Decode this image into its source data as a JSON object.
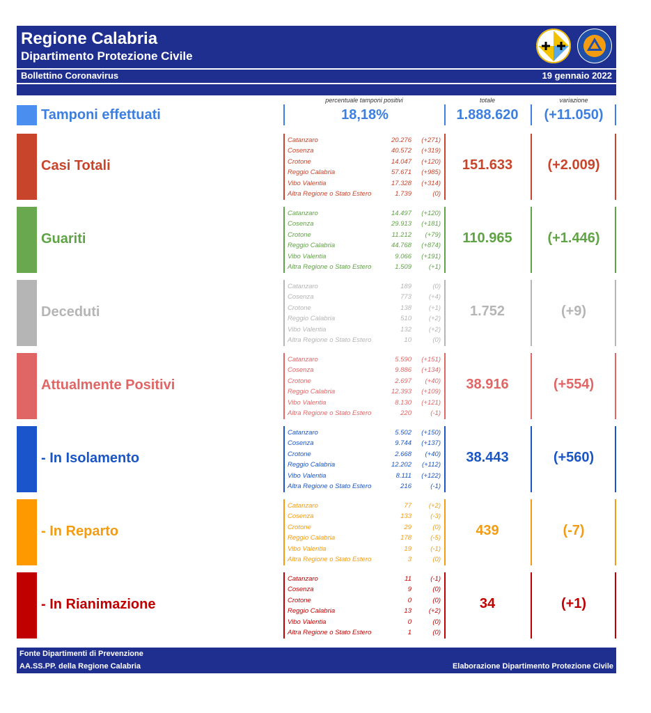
{
  "header": {
    "title": "Regione Calabria",
    "subtitle": "Dipartimento Protezione Civile",
    "bulletin": "Bollettino Coronavirus",
    "date": "19 gennaio 2022"
  },
  "columns": {
    "positivity": "percentuale tamponi positivi",
    "total": "totale",
    "change": "variazione"
  },
  "tamponi": {
    "label": "Tamponi effettuati",
    "positivity": "18,18%",
    "total": "1.888.620",
    "change": "(+11.050)",
    "color": "#3d7fe0"
  },
  "categories": [
    {
      "label": "Casi Totali",
      "color": "#c8442b",
      "bar_color": "#c8442b",
      "total": "151.633",
      "change": "(+2.009)",
      "rows": [
        {
          "prov": "Catanzaro",
          "num": "20.276",
          "delta": "(+271)"
        },
        {
          "prov": "Cosenza",
          "num": "40.572",
          "delta": "(+319)"
        },
        {
          "prov": "Crotone",
          "num": "14.047",
          "delta": "(+120)"
        },
        {
          "prov": "Reggio Calabria",
          "num": "57.671",
          "delta": "(+985)"
        },
        {
          "prov": "Vibo Valentia",
          "num": "17.328",
          "delta": "(+314)"
        },
        {
          "prov": "Altra Regione o Stato Estero",
          "num": "1.739",
          "delta": "(0)"
        }
      ]
    },
    {
      "label": "Guariti",
      "color": "#5fa344",
      "bar_color": "#6aa84f",
      "total": "110.965",
      "change": "(+1.446)",
      "rows": [
        {
          "prov": "Catanzaro",
          "num": "14.497",
          "delta": "(+120)"
        },
        {
          "prov": "Cosenza",
          "num": "29.913",
          "delta": "(+181)"
        },
        {
          "prov": "Crotone",
          "num": "11.212",
          "delta": "(+79)"
        },
        {
          "prov": "Reggio Calabria",
          "num": "44.768",
          "delta": "(+874)"
        },
        {
          "prov": "Vibo Valentia",
          "num": "9.066",
          "delta": "(+191)"
        },
        {
          "prov": "Altra Regione o Stato Estero",
          "num": "1.509",
          "delta": "(+1)"
        }
      ]
    },
    {
      "label": "Deceduti",
      "color": "#b5b5b5",
      "bar_color": "#b5b5b5",
      "total": "1.752",
      "change": "(+9)",
      "rows": [
        {
          "prov": "Catanzaro",
          "num": "189",
          "delta": "(0)"
        },
        {
          "prov": "Cosenza",
          "num": "773",
          "delta": "(+4)"
        },
        {
          "prov": "Crotone",
          "num": "138",
          "delta": "(+1)"
        },
        {
          "prov": "Reggio Calabria",
          "num": "510",
          "delta": "(+2)"
        },
        {
          "prov": "Vibo Valentia",
          "num": "132",
          "delta": "(+2)"
        },
        {
          "prov": "Altra Regione o Stato Estero",
          "num": "10",
          "delta": "(0)"
        }
      ]
    },
    {
      "label": "Attualmente Positivi",
      "color": "#e06666",
      "bar_color": "#e06666",
      "total": "38.916",
      "change": "(+554)",
      "rows": [
        {
          "prov": "Catanzaro",
          "num": "5.590",
          "delta": "(+151)"
        },
        {
          "prov": "Cosenza",
          "num": "9.886",
          "delta": "(+134)"
        },
        {
          "prov": "Crotone",
          "num": "2.697",
          "delta": "(+40)"
        },
        {
          "prov": "Reggio Calabria",
          "num": "12.393",
          "delta": "(+109)"
        },
        {
          "prov": "Vibo Valentia",
          "num": "8.130",
          "delta": "(+121)"
        },
        {
          "prov": "Altra Regione o Stato Estero",
          "num": "220",
          "delta": "(-1)"
        }
      ]
    },
    {
      "label": "- In Isolamento",
      "color": "#1a55c4",
      "bar_color": "#1a55cc",
      "total": "38.443",
      "change": "(+560)",
      "rows": [
        {
          "prov": "Catanzaro",
          "num": "5.502",
          "delta": "(+150)"
        },
        {
          "prov": "Cosenza",
          "num": "9.744",
          "delta": "(+137)"
        },
        {
          "prov": "Crotone",
          "num": "2.668",
          "delta": "(+40)"
        },
        {
          "prov": "Reggio Calabria",
          "num": "12.202",
          "delta": "(+112)"
        },
        {
          "prov": "Vibo Valentia",
          "num": "8.111",
          "delta": "(+122)"
        },
        {
          "prov": "Altra Regione o Stato Estero",
          "num": "216",
          "delta": "(-1)"
        }
      ]
    },
    {
      "label": "- In Reparto",
      "color": "#f39c12",
      "bar_color": "#ff9900",
      "total": "439",
      "change": "(-7)",
      "rows": [
        {
          "prov": "Catanzaro",
          "num": "77",
          "delta": "(+2)"
        },
        {
          "prov": "Cosenza",
          "num": "133",
          "delta": "(-3)"
        },
        {
          "prov": "Crotone",
          "num": "29",
          "delta": "(0)"
        },
        {
          "prov": "Reggio Calabria",
          "num": "178",
          "delta": "(-5)"
        },
        {
          "prov": "Vibo Valentia",
          "num": "19",
          "delta": "(-1)"
        },
        {
          "prov": "Altra Regione o Stato Estero",
          "num": "3",
          "delta": "(0)"
        }
      ]
    },
    {
      "label": "- In Rianimazione",
      "color": "#c00000",
      "bar_color": "#c00000",
      "total": "34",
      "change": "(+1)",
      "rows": [
        {
          "prov": "Catanzaro",
          "num": "11",
          "delta": "(-1)"
        },
        {
          "prov": "Cosenza",
          "num": "9",
          "delta": "(0)"
        },
        {
          "prov": "Crotone",
          "num": "0",
          "delta": "(0)"
        },
        {
          "prov": "Reggio Calabria",
          "num": "13",
          "delta": "(+2)"
        },
        {
          "prov": "Vibo Valentia",
          "num": "0",
          "delta": "(0)"
        },
        {
          "prov": "Altra Regione o Stato Estero",
          "num": "1",
          "delta": "(0)"
        }
      ]
    }
  ],
  "footer": {
    "source_line1": "Fonte Dipartimenti di Prevenzione",
    "source_line2": "AA.SS.PP.  della Regione Calabria",
    "elaboration": "Elaborazione Dipartimento Protezione Civile"
  },
  "colors": {
    "header_bg": "#1f2f8f"
  }
}
